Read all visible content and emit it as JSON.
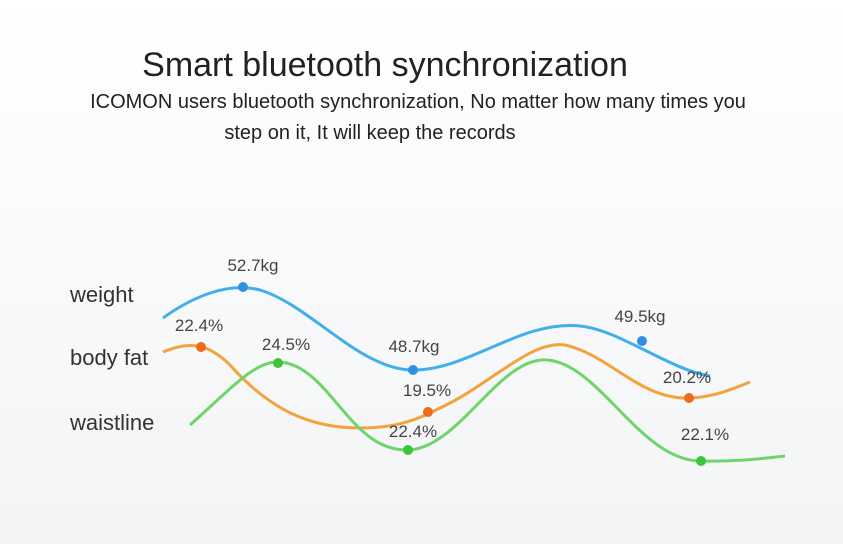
{
  "header": {
    "title": "Smart bluetooth synchronization",
    "subtitle_lines": [
      "ICOMON users bluetooth synchronization, No matter how many times you",
      "step on it, It will keep the records"
    ]
  },
  "rows": [
    {
      "label": "weight",
      "points": [
        "52.7kg",
        "48.7kg",
        "49.5kg"
      ]
    },
    {
      "label": "body fat",
      "points": [
        "22.4%",
        "19.5%",
        "20.2%"
      ]
    },
    {
      "label": "waistline",
      "points": [
        "24.5%",
        "22.4%",
        "22.1%"
      ]
    }
  ]
}
